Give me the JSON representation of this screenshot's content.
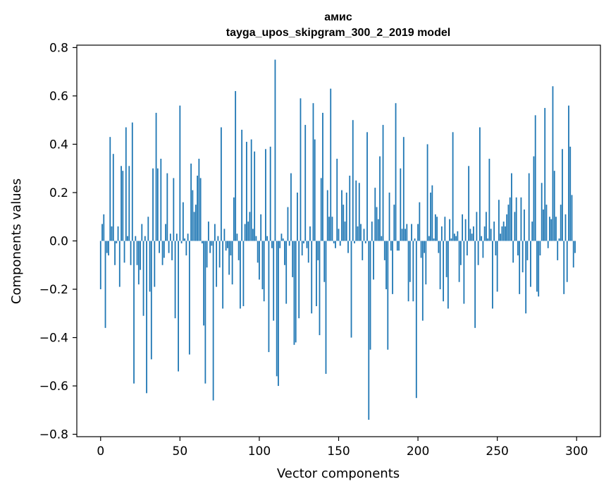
{
  "chart_data": {
    "type": "bar",
    "title": "амис",
    "subtitle": "tayga_upos_skipgram_300_2_2019 model",
    "xlabel": "Vector components",
    "ylabel": "Components values",
    "xlim": [
      -15,
      315
    ],
    "ylim": [
      -0.81,
      0.81
    ],
    "x_ticks": [
      0,
      50,
      100,
      150,
      200,
      250,
      300
    ],
    "x_tick_labels": [
      "0",
      "50",
      "100",
      "150",
      "200",
      "250",
      "300"
    ],
    "y_ticks": [
      -0.8,
      -0.6,
      -0.4,
      -0.2,
      0.0,
      0.2,
      0.4,
      0.6,
      0.8
    ],
    "y_tick_labels": [
      "−0.8",
      "−0.6",
      "−0.4",
      "−0.2",
      "0.0",
      "0.2",
      "0.4",
      "0.6",
      "0.8"
    ],
    "grid": false,
    "bar_color": "#1f77b4",
    "series": [
      {
        "values": [
          -0.2,
          0.07,
          0.11,
          -0.36,
          -0.05,
          -0.06,
          0.43,
          0.06,
          0.36,
          -0.1,
          -0.01,
          0.06,
          -0.19,
          0.31,
          0.29,
          -0.09,
          0.47,
          0.02,
          0.31,
          -0.1,
          0.49,
          -0.59,
          0.02,
          -0.1,
          -0.18,
          -0.12,
          0.07,
          -0.31,
          0.02,
          -0.63,
          0.1,
          -0.21,
          -0.49,
          0.3,
          -0.19,
          0.53,
          0.3,
          -0.05,
          0.34,
          -0.1,
          -0.07,
          0.07,
          0.28,
          -0.05,
          0.03,
          -0.08,
          0.26,
          -0.32,
          0.03,
          -0.54,
          0.56,
          -0.01,
          0.16,
          0.01,
          -0.06,
          0.03,
          -0.47,
          0.32,
          0.21,
          0.12,
          0.15,
          0.27,
          0.34,
          0.26,
          -0.01,
          -0.35,
          -0.59,
          -0.11,
          0.08,
          -0.05,
          -0.02,
          -0.66,
          0.07,
          -0.19,
          0.02,
          -0.11,
          0.47,
          -0.28,
          0.05,
          -0.04,
          -0.03,
          -0.14,
          -0.06,
          -0.18,
          0.18,
          0.62,
          0.03,
          -0.08,
          -0.28,
          0.46,
          -0.27,
          0.07,
          0.41,
          0.08,
          0.12,
          0.42,
          0.05,
          0.37,
          0.02,
          -0.09,
          -0.16,
          0.11,
          -0.2,
          -0.25,
          0.38,
          0.02,
          -0.46,
          0.39,
          -0.03,
          -0.33,
          0.75,
          -0.56,
          -0.6,
          -0.03,
          0.03,
          0.01,
          -0.1,
          -0.26,
          0.14,
          -0.02,
          0.28,
          -0.15,
          -0.43,
          -0.42,
          0.2,
          -0.32,
          0.59,
          -0.06,
          -0.01,
          0.48,
          -0.03,
          -0.09,
          0.06,
          -0.3,
          0.57,
          0.42,
          -0.27,
          -0.08,
          -0.39,
          0.26,
          0.53,
          -0.17,
          -0.55,
          0.21,
          0.1,
          0.63,
          0.1,
          -0.01,
          -0.03,
          0.34,
          0.05,
          -0.02,
          0.21,
          0.15,
          0.08,
          0.2,
          -0.05,
          0.27,
          -0.4,
          0.5,
          -0.01,
          0.25,
          0.06,
          0.24,
          0.07,
          -0.08,
          0.05,
          -0.01,
          0.45,
          -0.74,
          -0.45,
          0.08,
          -0.16,
          0.22,
          0.14,
          0.09,
          0.35,
          0.02,
          0.48,
          -0.08,
          -0.2,
          -0.45,
          0.2,
          -0.04,
          -0.22,
          0.15,
          0.57,
          -0.04,
          -0.04,
          0.3,
          0.05,
          0.43,
          0.05,
          0.07,
          -0.25,
          -0.17,
          0.07,
          -0.25,
          0.01,
          -0.65,
          0.07,
          0.16,
          -0.07,
          -0.33,
          -0.05,
          -0.18,
          0.4,
          0.02,
          0.2,
          0.23,
          0.01,
          0.11,
          0.1,
          -0.05,
          -0.2,
          0.06,
          -0.25,
          0.1,
          -0.15,
          -0.28,
          0.09,
          0.01,
          0.45,
          0.03,
          0.02,
          0.04,
          -0.17,
          -0.1,
          0.11,
          -0.26,
          0.09,
          -0.06,
          0.31,
          0.05,
          0.03,
          0.06,
          -0.36,
          0.12,
          -0.1,
          0.47,
          0.02,
          -0.07,
          0.06,
          0.12,
          0.01,
          0.34,
          0.05,
          -0.28,
          0.08,
          -0.06,
          -0.21,
          0.17,
          0.03,
          0.06,
          0.08,
          0.06,
          0.11,
          0.15,
          0.18,
          0.28,
          -0.09,
          0.12,
          0.18,
          -0.06,
          -0.22,
          0.18,
          -0.13,
          0.13,
          -0.3,
          -0.08,
          0.28,
          -0.19,
          0.08,
          0.35,
          0.52,
          -0.21,
          -0.23,
          -0.06,
          0.24,
          0.13,
          0.55,
          0.15,
          -0.03,
          0.1,
          0.09,
          0.64,
          0.29,
          0.1,
          -0.08,
          0.01,
          0.15,
          0.38,
          -0.22,
          0.11,
          -0.17,
          0.56,
          0.39,
          0.19,
          -0.11,
          -0.05
        ]
      }
    ]
  }
}
